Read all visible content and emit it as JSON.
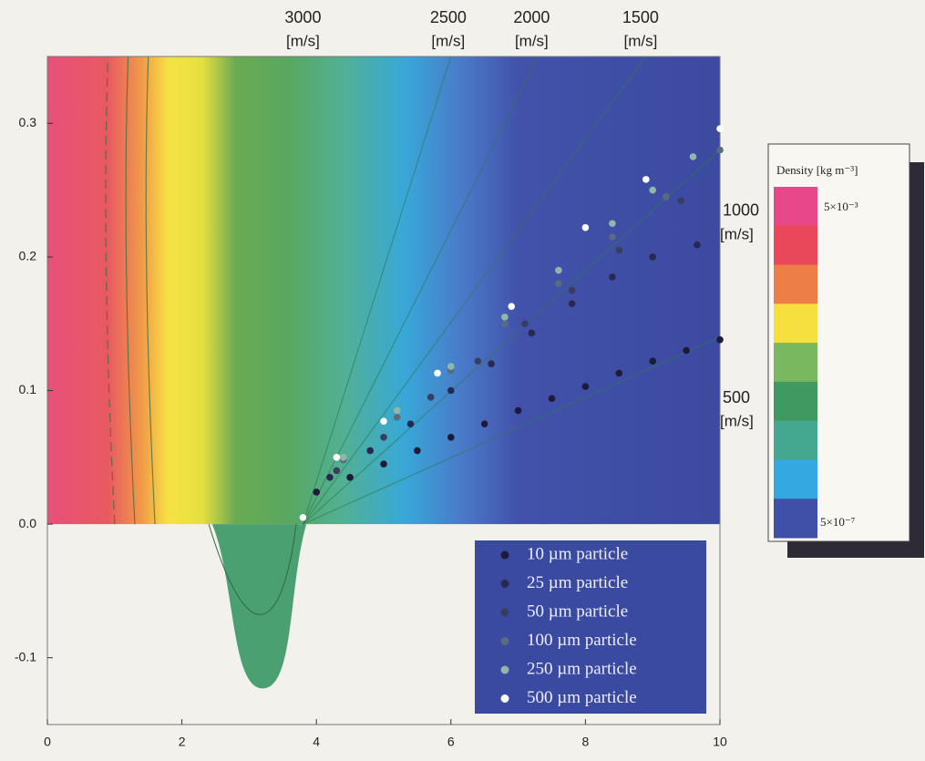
{
  "chart_data": {
    "type": "scatter",
    "xlim": [
      0,
      10
    ],
    "ylim": [
      -0.15,
      0.35
    ],
    "xticks": [
      0,
      2,
      4,
      6,
      8,
      10
    ],
    "yticks": [
      {
        "value": -0.1,
        "label": "-0.1"
      },
      {
        "value": 0,
        "label": "0.0"
      },
      0.1,
      0.2,
      0.3
    ],
    "series": [
      {
        "name": "10 µm particle",
        "color": "#1e1a3a",
        "x": [
          3.8,
          4.0,
          4.5,
          5.0,
          5.5,
          6.0,
          6.5,
          7.0,
          7.5,
          8.0,
          8.5,
          9.0,
          9.5,
          10.0
        ],
        "values": [
          0.005,
          0.024,
          0.035,
          0.045,
          0.055,
          0.065,
          0.075,
          0.085,
          0.094,
          0.103,
          0.113,
          0.122,
          0.13,
          0.138
        ]
      },
      {
        "name": "25 µm particle",
        "color": "#2a2850",
        "x": [
          3.8,
          4.2,
          4.8,
          5.4,
          6.0,
          6.6,
          7.2,
          7.8,
          8.4,
          9.0,
          9.66
        ],
        "values": [
          0.005,
          0.035,
          0.055,
          0.075,
          0.1,
          0.12,
          0.143,
          0.165,
          0.185,
          0.2,
          0.209
        ]
      },
      {
        "name": "50 µm particle",
        "color": "#3a3c60",
        "x": [
          3.8,
          4.3,
          5.0,
          5.7,
          6.4,
          7.1,
          7.8,
          8.5,
          9.42
        ],
        "values": [
          0.005,
          0.04,
          0.065,
          0.095,
          0.122,
          0.15,
          0.175,
          0.205,
          0.242
        ]
      },
      {
        "name": "100 µm particle",
        "color": "#5a6a80",
        "x": [
          3.8,
          4.4,
          5.2,
          6.0,
          6.8,
          7.6,
          8.4,
          9.2,
          10.0
        ],
        "values": [
          0.005,
          0.048,
          0.08,
          0.115,
          0.15,
          0.18,
          0.215,
          0.245,
          0.28
        ]
      },
      {
        "name": "250 µm particle",
        "color": "#8fb8a8",
        "x": [
          3.8,
          4.4,
          5.2,
          6.0,
          6.8,
          7.6,
          8.4,
          9.0,
          9.6
        ],
        "values": [
          0.005,
          0.05,
          0.085,
          0.118,
          0.155,
          0.19,
          0.225,
          0.25,
          0.275
        ]
      },
      {
        "name": "500 µm particle",
        "color": "#ffffff",
        "x": [
          3.8,
          4.3,
          5.0,
          5.8,
          6.9,
          8.0,
          8.9,
          10.0
        ],
        "values": [
          0.005,
          0.05,
          0.077,
          0.113,
          0.163,
          0.222,
          0.258,
          0.296
        ]
      }
    ],
    "top_annotations": [
      {
        "label": "3000",
        "unit": "[m/s]",
        "x": 3.8
      },
      {
        "label": "2500",
        "unit": "[m/s]",
        "x": 5.96
      },
      {
        "label": "2000",
        "unit": "[m/s]",
        "x": 7.2
      },
      {
        "label": "1500",
        "unit": "[m/s]",
        "x": 8.82
      }
    ],
    "right_annotations": [
      {
        "label": "1000",
        "unit": "[m/s]",
        "y": 0.23
      },
      {
        "label": "500",
        "unit": "[m/s]",
        "y": 0.09
      }
    ],
    "colorbar": {
      "title": "Density [kg m⁻³]",
      "max_label": "5×10⁻³",
      "min_label": "5×10⁻⁷",
      "colors": [
        "#e8488a",
        "#e8485a",
        "#ee7e48",
        "#f6e040",
        "#7ab860",
        "#3f9a62",
        "#44a890",
        "#34a8e0",
        "#4050a8"
      ]
    }
  }
}
